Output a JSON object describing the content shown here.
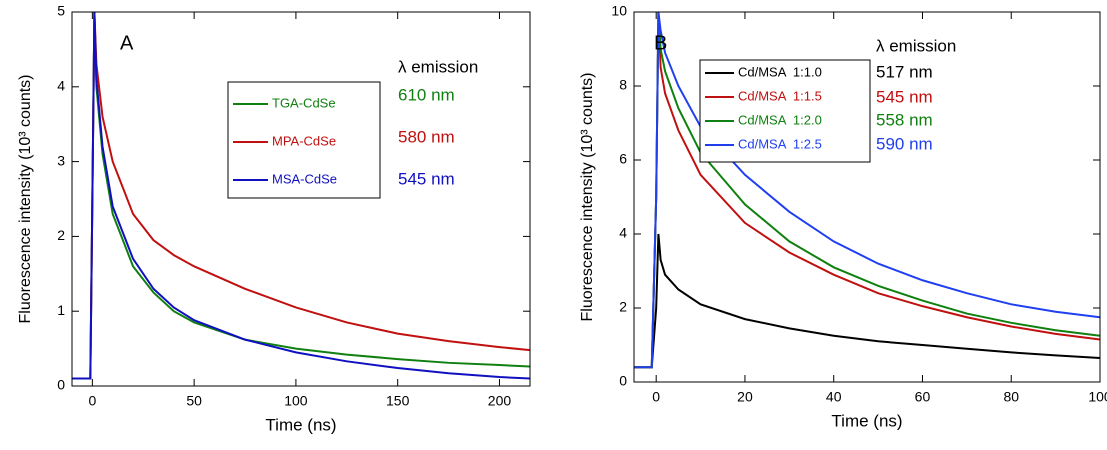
{
  "chart_data": [
    {
      "type": "line",
      "label": "A",
      "x_label": "Time (ns)",
      "y_label": "Fluorescence intensity (10³ counts)",
      "emission_header": "λ emission",
      "x": [
        -10,
        -1,
        0,
        1,
        2,
        5,
        10,
        20,
        30,
        40,
        50,
        75,
        100,
        125,
        150,
        175,
        200,
        215
      ],
      "series": [
        {
          "name": "TGA-CdSe",
          "color": "#108010",
          "emission": "610 nm",
          "values": [
            0.1,
            0.1,
            2.5,
            5.0,
            4.0,
            3.1,
            2.3,
            1.6,
            1.25,
            1.0,
            0.85,
            0.62,
            0.5,
            0.42,
            0.36,
            0.31,
            0.28,
            0.26
          ]
        },
        {
          "name": "MPA-CdSe",
          "color": "#c01010",
          "emission": "580 nm",
          "values": [
            0.1,
            0.1,
            2.5,
            5.0,
            4.3,
            3.6,
            3.0,
            2.3,
            1.95,
            1.75,
            1.6,
            1.3,
            1.05,
            0.85,
            0.7,
            0.6,
            0.52,
            0.48
          ]
        },
        {
          "name": "MSA-CdSe",
          "color": "#1010c0",
          "emission": "545 nm",
          "values": [
            0.1,
            0.1,
            2.5,
            5.0,
            4.1,
            3.2,
            2.4,
            1.7,
            1.3,
            1.05,
            0.88,
            0.62,
            0.45,
            0.33,
            0.24,
            0.17,
            0.12,
            0.1
          ]
        }
      ],
      "xlim": [
        -10,
        215
      ],
      "xticks": [
        0,
        50,
        100,
        150,
        200
      ],
      "ylim": [
        0,
        5
      ],
      "yticks": [
        0,
        1,
        2,
        3,
        4,
        5
      ]
    },
    {
      "type": "line",
      "label": "B",
      "x_label": "Time  (ns)",
      "y_label": "Fluorescence intensity  (10³ counts)",
      "emission_header": "λ emission",
      "x": [
        -5,
        -1,
        0,
        0.5,
        1,
        2,
        5,
        10,
        20,
        30,
        40,
        50,
        60,
        70,
        80,
        90,
        100
      ],
      "series": [
        {
          "name": "Cd/MSA  1:1.0",
          "color": "#000000",
          "emission": "517 nm",
          "values": [
            0.4,
            0.4,
            2,
            4,
            3.3,
            2.9,
            2.5,
            2.1,
            1.7,
            1.45,
            1.25,
            1.1,
            1.0,
            0.9,
            0.8,
            0.72,
            0.65
          ]
        },
        {
          "name": "Cd/MSA  1:1.5",
          "color": "#c01010",
          "emission": "545 nm",
          "values": [
            0.4,
            0.4,
            5,
            10,
            8.5,
            7.8,
            6.8,
            5.6,
            4.3,
            3.5,
            2.9,
            2.4,
            2.05,
            1.75,
            1.5,
            1.3,
            1.15
          ]
        },
        {
          "name": "Cd/MSA  1:2.0",
          "color": "#108010",
          "emission": "558 nm",
          "values": [
            0.4,
            0.4,
            5,
            10,
            9,
            8.4,
            7.4,
            6.2,
            4.8,
            3.8,
            3.1,
            2.6,
            2.2,
            1.85,
            1.6,
            1.4,
            1.25
          ]
        },
        {
          "name": "Cd/MSA  1:2.5",
          "color": "#2040f0",
          "emission": "590 nm",
          "values": [
            0.4,
            0.4,
            5,
            10,
            9.5,
            8.9,
            8,
            6.9,
            5.6,
            4.6,
            3.8,
            3.2,
            2.75,
            2.4,
            2.1,
            1.9,
            1.75
          ]
        }
      ],
      "xlim": [
        -5,
        100
      ],
      "xticks": [
        0,
        20,
        40,
        60,
        80,
        100
      ],
      "ylim": [
        0,
        10
      ],
      "yticks": [
        0,
        2,
        4,
        6,
        8,
        10
      ]
    }
  ]
}
